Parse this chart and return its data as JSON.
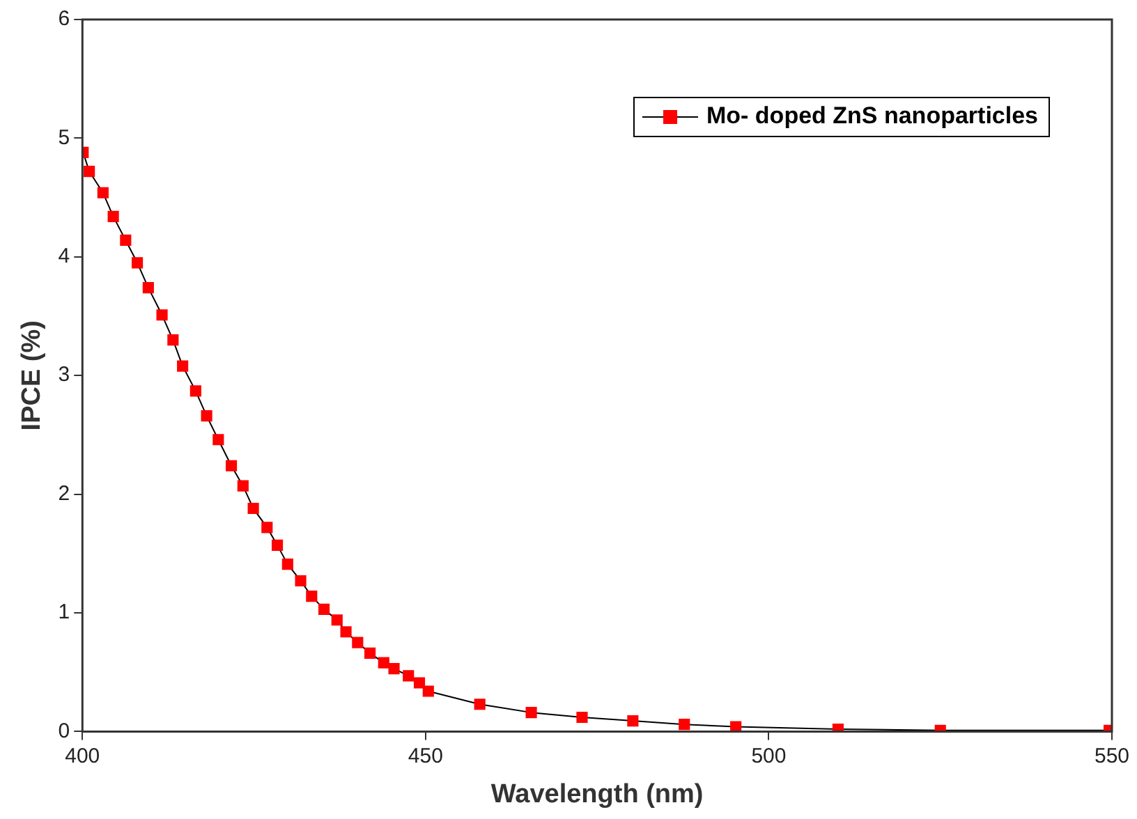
{
  "chart_data": {
    "type": "line",
    "xlabel": "Wavelength (nm)",
    "ylabel": "IPCE (%)",
    "xlim": [
      400,
      550
    ],
    "xticks": [
      400,
      450,
      500,
      550
    ],
    "ylim": [
      0,
      6
    ],
    "yticks": [
      0,
      1,
      2,
      3,
      4,
      5,
      6
    ],
    "grid": false,
    "legend": "top right",
    "marker": "square",
    "line_style": "solid",
    "series": [
      {
        "name": "Mo- doped ZnS nanoparticles",
        "color": "#ff0000",
        "x": [
          400.1,
          401.0,
          403.0,
          404.5,
          406.3,
          408.0,
          409.6,
          411.6,
          413.2,
          414.6,
          416.5,
          418.1,
          419.8,
          421.7,
          423.4,
          424.9,
          426.9,
          428.4,
          429.9,
          431.8,
          433.4,
          435.2,
          437.1,
          438.4,
          440.1,
          441.9,
          443.9,
          445.4,
          447.5,
          449.1,
          450.4,
          457.9,
          465.4,
          472.8,
          480.2,
          487.7,
          495.2,
          510.1,
          525,
          549.6
        ],
        "values": [
          4.88,
          4.72,
          4.54,
          4.34,
          4.14,
          3.95,
          3.74,
          3.51,
          3.3,
          3.08,
          2.87,
          2.66,
          2.46,
          2.24,
          2.07,
          1.88,
          1.72,
          1.57,
          1.41,
          1.27,
          1.14,
          1.03,
          0.94,
          0.84,
          0.75,
          0.66,
          0.58,
          0.53,
          0.47,
          0.41,
          0.34,
          0.23,
          0.16,
          0.12,
          0.09,
          0.06,
          0.04,
          0.02,
          0.01,
          0.01
        ]
      }
    ]
  }
}
